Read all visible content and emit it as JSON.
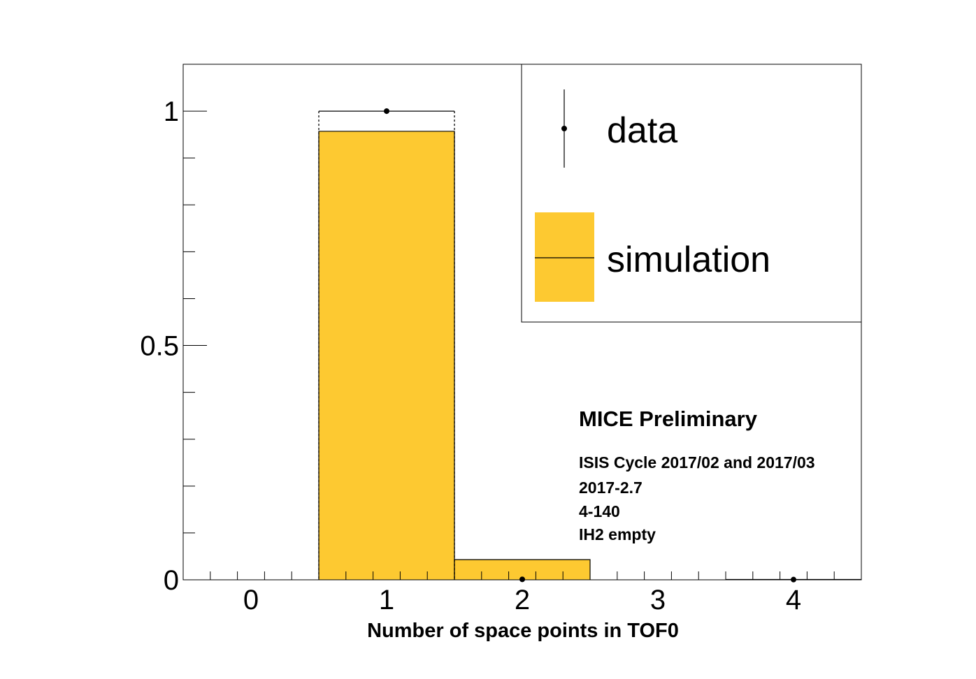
{
  "chart_data": {
    "type": "bar",
    "categories": [
      "0",
      "1",
      "2",
      "3",
      "4"
    ],
    "x": [
      0,
      1,
      2,
      3,
      4
    ],
    "xlim": [
      -0.5,
      4.5
    ],
    "ylim": [
      0,
      1.1
    ],
    "xlabel": "Number of space points in TOF0",
    "ylabel": "",
    "x_ticks": [
      "0",
      "1",
      "2",
      "3",
      "4"
    ],
    "y_ticks": [
      "0",
      "0.5",
      "1"
    ],
    "y_tick_values": [
      0,
      0.5,
      1
    ],
    "series": [
      {
        "name": "simulation",
        "kind": "histogram",
        "color": "#fdc931",
        "values": [
          0,
          0.957,
          0.043,
          0,
          0.001
        ]
      },
      {
        "name": "data",
        "kind": "points-with-errors",
        "color": "#000000",
        "values": [
          0,
          1.0,
          0.001,
          0,
          0.0005
        ],
        "errors": [
          0,
          0.006,
          0.001,
          0,
          0.0005
        ]
      }
    ],
    "legend": {
      "placement": "top-right",
      "entries": [
        {
          "label": "data",
          "style": "marker-with-error"
        },
        {
          "label": "simulation",
          "style": "filled-box-with-line"
        }
      ]
    },
    "annotations": {
      "title": "MICE Preliminary",
      "lines": [
        "ISIS Cycle 2017/02 and 2017/03",
        "2017-2.7",
        "4-140",
        "IH2 empty"
      ]
    },
    "grid": false
  }
}
